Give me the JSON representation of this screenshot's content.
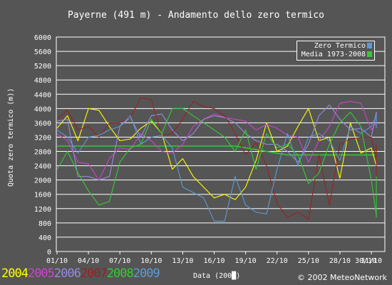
{
  "chart_data": {
    "type": "line",
    "title": "Payerne (491 m) - Andamento dello zero termico",
    "ylabel": "Quota zero termico (m))",
    "xlabel": "Data (200█)",
    "ylim": [
      0,
      6000
    ],
    "yticks": [
      0,
      400,
      800,
      1200,
      1600,
      2000,
      2400,
      2800,
      3200,
      3600,
      4000,
      4400,
      4800,
      5200,
      5600,
      6000
    ],
    "xticks": [
      "01/10",
      "04/10",
      "07/10",
      "10/10",
      "13/10",
      "16/10",
      "19/10",
      "22/10",
      "25/10",
      "28/10",
      "31/10"
    ],
    "extra_xtick": "30/10",
    "grid": true,
    "legend_position": "top-right",
    "legend": [
      {
        "label": "Zero Termico",
        "color": "#5b9bd5"
      },
      {
        "label": "Media 1973-2008",
        "color": "#33cc33"
      }
    ],
    "series": [
      {
        "name": "2004",
        "color": "#ffff00",
        "values": [
          3450,
          3800,
          3100,
          4000,
          3950,
          3500,
          3100,
          3150,
          3450,
          3650,
          3300,
          2300,
          2600,
          2100,
          1800,
          1500,
          1600,
          1450,
          1800,
          2550,
          3600,
          2800,
          2950,
          3500,
          4000,
          3100,
          3200,
          2050,
          3600,
          2750,
          2900,
          2400,
          2500,
          2600
        ]
      },
      {
        "name": "2005",
        "color": "#cc44cc",
        "values": [
          3300,
          3100,
          2500,
          2450,
          2000,
          2600,
          2900,
          2850,
          3300,
          3100,
          2800,
          2750,
          3000,
          3500,
          3700,
          3850,
          3750,
          3700,
          3650,
          3400,
          3550,
          3450,
          3250,
          3200,
          2500,
          3100,
          3500,
          4150,
          4200,
          4150,
          3400,
          3600,
          3750,
          3550
        ]
      },
      {
        "name": "2006",
        "color": "#9988dd",
        "values": [
          3650,
          3700,
          2100,
          2100,
          2000,
          2100,
          3500,
          3750,
          3200,
          3800,
          3850,
          3400,
          3100,
          3300,
          3700,
          3800,
          3750,
          3600,
          3300,
          3100,
          3000,
          3000,
          2800,
          2500,
          3000,
          3800,
          4100,
          3700,
          3400,
          3450,
          3200,
          3900,
          3850,
          3550
        ]
      },
      {
        "name": "2007",
        "color": "#992222",
        "values": [
          3700,
          3950,
          3400,
          3500,
          3200,
          3600,
          3600,
          3750,
          4300,
          4250,
          3250,
          3300,
          3700,
          4200,
          4050,
          4000,
          3800,
          3300,
          2700,
          3050,
          2400,
          1350,
          950,
          1100,
          900,
          2700,
          1300,
          3000,
          3150,
          3200,
          3200,
          2600,
          2000,
          3000
        ]
      },
      {
        "name": "2008",
        "color": "#33cc33",
        "values": [
          2300,
          2800,
          2200,
          1700,
          1300,
          1400,
          2500,
          2900,
          3000,
          3700,
          3300,
          4000,
          4000,
          3800,
          3600,
          3400,
          3200,
          2800,
          3400,
          2300,
          3300,
          2900,
          3000,
          2700,
          1900,
          2200,
          3000,
          3600,
          3900,
          3500,
          2000,
          1000,
          950,
          1000,
          2100
        ]
      },
      {
        "name": "2009",
        "color": "#5b9bd5",
        "values": [
          3400,
          3200,
          2750,
          3200,
          3250,
          3400,
          3500,
          3800,
          3000,
          3200,
          3250,
          2900,
          1800,
          1650,
          1500,
          850,
          850,
          2100,
          1300,
          1100,
          1050,
          2300,
          3300,
          2400,
          3200,
          3300,
          3100,
          2550,
          3500,
          3300,
          3500,
          3800,
          3700,
          3450
        ]
      },
      {
        "name": "Media 1973-2008",
        "color": "#33cc33",
        "values": [
          2950,
          2950,
          2950,
          2950,
          2950,
          2950,
          2950,
          2950,
          2950,
          2950,
          2950,
          2950,
          2950,
          2950,
          2950,
          2950,
          2950,
          2950,
          2900,
          2850,
          2800,
          2750,
          2700,
          2700,
          2700,
          2700,
          2700,
          2700,
          2700,
          2700,
          2700,
          2700,
          2700
        ]
      }
    ]
  },
  "footer": {
    "years": [
      {
        "label": "2004",
        "color": "#ffff00"
      },
      {
        "label": "2005",
        "color": "#cc44cc"
      },
      {
        "label": "2006",
        "color": "#9988dd"
      },
      {
        "label": "2007",
        "color": "#992222"
      },
      {
        "label": "2008",
        "color": "#33cc33"
      },
      {
        "label": "2009",
        "color": "#5b9bd5"
      }
    ],
    "credit": "© 2002 MeteoNetwork"
  }
}
